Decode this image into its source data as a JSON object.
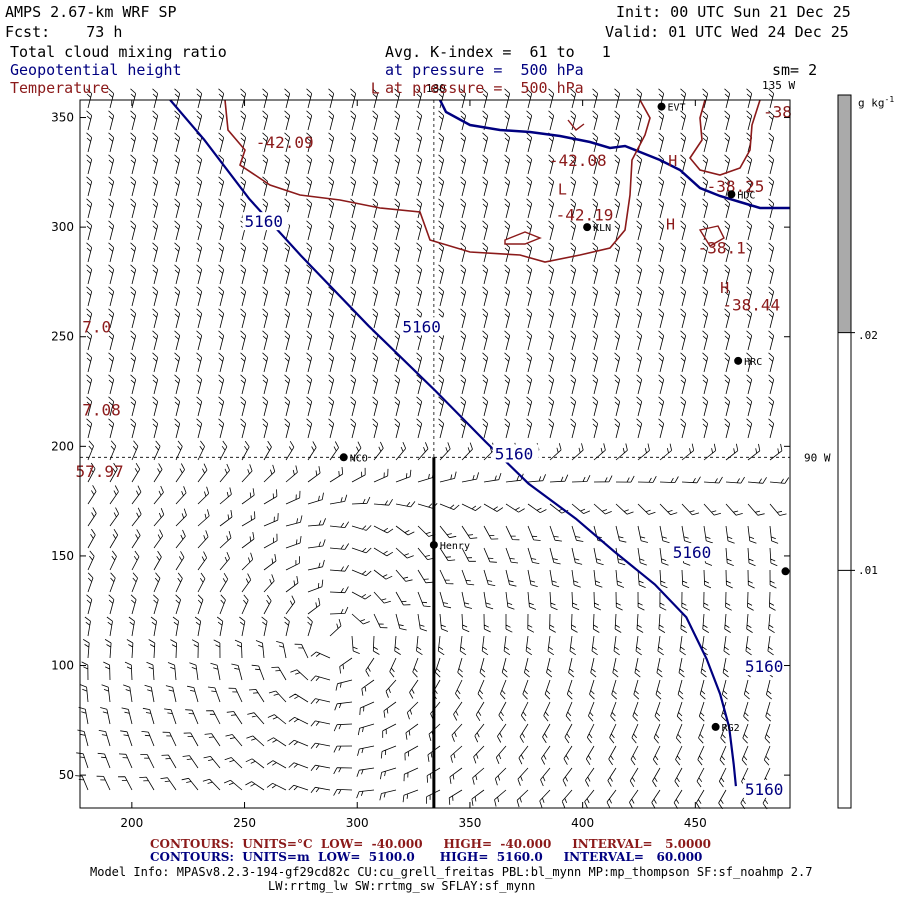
{
  "header": {
    "model_title": "AMPS 2.67-km WRF SP",
    "forecast": "Fcst:    73 h",
    "init": "Init: 00 UTC Sun 21 Dec 25",
    "valid": "Valid: 01 UTC Wed 24 Dec 25",
    "field1": "Total cloud mixing ratio",
    "field2": "Geopotential height",
    "field3": "Temperature",
    "avg_k": "Avg. K-index =  61 to   1",
    "pressure1": "at pressure =  500 hPa",
    "pressure2": "at pressure =  500 hPa",
    "smoothing": "sm= 2"
  },
  "colorbar": {
    "unit_label": "g kg",
    "unit_exp": "-1",
    "ticks": [
      ".02",
      ".01"
    ],
    "levels": [
      0.01,
      0.02
    ],
    "shaded_above": 0.02,
    "colors": {
      "shaded": "#aaaaaa",
      "edge": "#000000"
    }
  },
  "axes": {
    "x_ticks": [
      "200",
      "250",
      "300",
      "350",
      "400",
      "450"
    ],
    "y_ticks": [
      "350",
      "300",
      "250",
      "200",
      "150",
      "100",
      "50"
    ],
    "x_range": [
      177,
      492
    ],
    "y_range": [
      35,
      358
    ]
  },
  "graticule": {
    "labels": [
      {
        "text": "180",
        "kind": "meridian"
      },
      {
        "text": "135 W",
        "kind": "meridian"
      },
      {
        "text": "90 W",
        "kind": "meridian"
      }
    ],
    "vertical_x": 334,
    "horizontal_y": 195
  },
  "stations": [
    {
      "name": "NCO",
      "x": 294,
      "y": 195
    },
    {
      "name": "Henry",
      "x": 334,
      "y": 155
    },
    {
      "name": "KLN",
      "x": 402,
      "y": 300
    },
    {
      "name": "HRC",
      "x": 469,
      "y": 239
    },
    {
      "name": "RG2",
      "x": 459,
      "y": 72
    },
    {
      "name": "HDC",
      "x": 466,
      "y": 315
    },
    {
      "name": "EVT",
      "x": 435,
      "y": 355
    },
    {
      "name": "",
      "x": 490,
      "y": 143
    }
  ],
  "height_contours": {
    "level_label": "5160",
    "path": [
      [
        217,
        358
      ],
      [
        232,
        340
      ],
      [
        252,
        313
      ],
      [
        275,
        287
      ],
      [
        305,
        255
      ],
      [
        335,
        225
      ],
      [
        357,
        202
      ],
      [
        376,
        183
      ],
      [
        397,
        167
      ],
      [
        414,
        152
      ],
      [
        432,
        137
      ],
      [
        446,
        122
      ],
      [
        455,
        103
      ],
      [
        461,
        87
      ],
      [
        465,
        72
      ],
      [
        467,
        55
      ],
      [
        468,
        45
      ]
    ],
    "label_positions": [
      [
        250,
        300
      ],
      [
        320,
        252
      ],
      [
        361,
        194
      ],
      [
        440,
        149
      ],
      [
        472,
        97
      ],
      [
        472,
        41
      ]
    ]
  },
  "temperature": {
    "labels": [
      {
        "text": "-42.09",
        "x": 255,
        "y": 336
      },
      {
        "text": "-42.08",
        "x": 385,
        "y": 328
      },
      {
        "text": "-42.19",
        "x": 388,
        "y": 303
      },
      {
        "text": "-38.25",
        "x": 455,
        "y": 316
      },
      {
        "text": "-38.1",
        "x": 451,
        "y": 288
      },
      {
        "text": "-38.44",
        "x": 462,
        "y": 262
      },
      {
        "text": "-38",
        "x": 480,
        "y": 350
      },
      {
        "text": "7.0",
        "x": 178,
        "y": 252
      },
      {
        "text": "7.08",
        "x": 178,
        "y": 214
      },
      {
        "text": "57.97",
        "x": 175,
        "y": 186
      }
    ],
    "extrema": [
      {
        "text": "L",
        "x": 306,
        "y": 361
      },
      {
        "text": "L",
        "x": 389,
        "y": 315
      },
      {
        "text": "H",
        "x": 438,
        "y": 328
      },
      {
        "text": "H",
        "x": 437,
        "y": 299
      },
      {
        "text": "H",
        "x": 461,
        "y": 270
      }
    ]
  },
  "footer": {
    "line1_label1": "CONTOURS:",
    "line1_units": "UNITS=°C",
    "line1_low": "LOW=  -40.000",
    "line1_high": "HIGH=  -40.000",
    "line1_interval": "INTERVAL=   5.0000",
    "line2_label1": "CONTOURS:",
    "line2_units": "UNITS=m",
    "line2_low": "LOW=  5100.0",
    "line2_high": "HIGH=  5160.0",
    "line2_interval": "INTERVAL=   60.000",
    "model_info": "Model Info: MPASv8.2.3-194-gf29cd82c CU:cu_grell_freitas PBL:bl_mynn MP:mp_thompson SF:sf_noahmp 2.7",
    "model_info2": "LW:rrtmg_lw SW:rrtmg_sw SFLAY:sf_mynn"
  },
  "colors": {
    "height": "#000080",
    "temperature": "#8b1a1a",
    "coastline": "#000080",
    "barbs": "#000000"
  }
}
